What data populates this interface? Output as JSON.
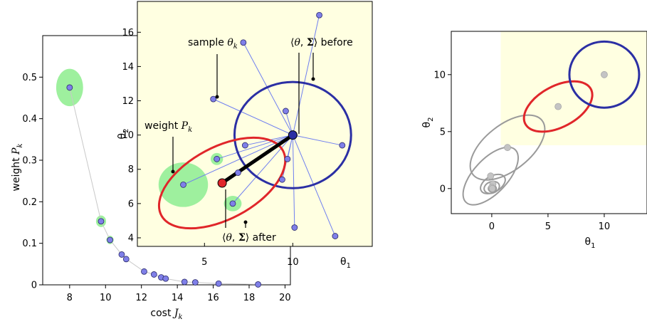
{
  "chart_data": [
    {
      "type": "scatter",
      "panel": "weights",
      "xlabel": "cost J_k",
      "xlabel_main": "cost ",
      "xlabel_sym": "J",
      "xlabel_sub": "k",
      "ylabel": "weight P_k",
      "ylabel_main": "weight ",
      "ylabel_sym": "P",
      "ylabel_sub": "k",
      "xlim": [
        6.5,
        20.3
      ],
      "ylim": [
        0,
        0.6
      ],
      "xticks": [
        8,
        10,
        12,
        14,
        16,
        18,
        20
      ],
      "yticks": [
        0,
        0.1,
        0.2,
        0.3,
        0.4,
        0.5
      ],
      "points": [
        {
          "x": 8.0,
          "y": 0.475
        },
        {
          "x": 9.75,
          "y": 0.153
        },
        {
          "x": 10.25,
          "y": 0.108
        },
        {
          "x": 10.9,
          "y": 0.073
        },
        {
          "x": 11.15,
          "y": 0.062
        },
        {
          "x": 12.15,
          "y": 0.032
        },
        {
          "x": 12.7,
          "y": 0.025
        },
        {
          "x": 13.1,
          "y": 0.018
        },
        {
          "x": 13.35,
          "y": 0.015
        },
        {
          "x": 14.4,
          "y": 0.007
        },
        {
          "x": 15.0,
          "y": 0.006
        },
        {
          "x": 16.3,
          "y": 0.003
        },
        {
          "x": 18.5,
          "y": 0.001
        }
      ],
      "highlighted": [
        {
          "x": 8.0,
          "y": 0.475,
          "rx": 0.75,
          "ry": 0.045
        },
        {
          "x": 9.75,
          "y": 0.153,
          "rx": 0.28,
          "ry": 0.014
        },
        {
          "x": 10.25,
          "y": 0.108,
          "rx": 0.2,
          "ry": 0.01
        }
      ]
    },
    {
      "type": "scatter",
      "panel": "update",
      "xlabel": "θ1",
      "xlabel_main": "θ",
      "xlabel_sub": "1",
      "ylabel": "θ2",
      "ylabel_main": "θ",
      "ylabel_sub": "2",
      "xlim": [
        1.2,
        14.5
      ],
      "ylim": [
        3.5,
        17.8
      ],
      "xticks": [
        5,
        10
      ],
      "yticks": [
        4,
        6,
        8,
        10,
        12,
        14,
        16
      ],
      "mean_before": {
        "x": 10.0,
        "y": 10.0
      },
      "mean_after": {
        "x": 6.0,
        "y": 7.2
      },
      "cov_before": {
        "rx": 3.3,
        "ry": 3.1,
        "angle": 0
      },
      "cov_after": {
        "rx": 3.9,
        "ry": 2.1,
        "angle": 28
      },
      "samples": [
        {
          "x": 11.5,
          "y": 17.0
        },
        {
          "x": 7.2,
          "y": 15.4
        },
        {
          "x": 5.5,
          "y": 12.1
        },
        {
          "x": 9.6,
          "y": 11.4
        },
        {
          "x": 12.8,
          "y": 9.4
        },
        {
          "x": 7.3,
          "y": 9.4
        },
        {
          "x": 9.7,
          "y": 8.6
        },
        {
          "x": 5.7,
          "y": 8.6
        },
        {
          "x": 6.9,
          "y": 7.8
        },
        {
          "x": 9.4,
          "y": 7.4
        },
        {
          "x": 3.8,
          "y": 7.1
        },
        {
          "x": 6.6,
          "y": 6.0
        },
        {
          "x": 10.1,
          "y": 4.6
        },
        {
          "x": 12.4,
          "y": 4.1
        }
      ],
      "weight_halos": [
        {
          "x": 3.8,
          "y": 7.1,
          "rx": 1.4,
          "ry": 1.3
        },
        {
          "x": 5.7,
          "y": 8.6,
          "rx": 0.35,
          "ry": 0.35
        },
        {
          "x": 6.6,
          "y": 6.0,
          "rx": 0.5,
          "ry": 0.45
        }
      ],
      "annotations": [
        {
          "text_main": "sample ",
          "sym": "θ",
          "sub": "k"
        },
        {
          "text_main": "weight ",
          "sym": "P",
          "sub": "k"
        },
        {
          "text_main": " before"
        },
        {
          "text_main": " after"
        }
      ],
      "bracket_label": {
        "open": "⟨",
        "theta": "θ",
        "comma": ", ",
        "sigma": "Σ",
        "close": "⟩"
      }
    },
    {
      "type": "scatter",
      "panel": "history",
      "xlabel": "θ1",
      "xlabel_main": "θ",
      "xlabel_sub": "1",
      "ylabel": "θ2",
      "ylabel_main": "θ",
      "ylabel_sub": "2",
      "xlim": [
        -3.6,
        13.8
      ],
      "ylim": [
        -2.2,
        13.8
      ],
      "xticks": [
        0,
        5,
        10
      ],
      "yticks": [
        0,
        5,
        10
      ],
      "region": {
        "x0": 0.8,
        "y0": 3.8
      },
      "colors": {
        "before": "#2b2fa4",
        "after": "#e0262a",
        "history": "#9a9a9a",
        "sample": "#7f7fe8",
        "halo": "#9ef09e",
        "region": "#ffffe1"
      },
      "means": [
        {
          "x": 10.0,
          "y": 10.0,
          "rx": 3.1,
          "ry": 2.9,
          "angle": 0,
          "role": "before"
        },
        {
          "x": 5.9,
          "y": 7.2,
          "rx": 3.3,
          "ry": 1.8,
          "angle": 28,
          "role": "after"
        },
        {
          "x": 1.4,
          "y": 3.6,
          "rx": 3.9,
          "ry": 2.0,
          "angle": 38,
          "role": "history"
        },
        {
          "x": -0.1,
          "y": 1.1,
          "rx": 3.2,
          "ry": 1.5,
          "angle": 47,
          "role": "history"
        },
        {
          "x": 0.1,
          "y": 0.4,
          "rx": 1.2,
          "ry": 0.7,
          "angle": 30,
          "role": "history"
        },
        {
          "x": 0.0,
          "y": 0.1,
          "rx": 0.7,
          "ry": 0.5,
          "angle": 20,
          "role": "history"
        },
        {
          "x": 0.05,
          "y": 0.0,
          "rx": 0.35,
          "ry": 0.3,
          "angle": 0,
          "role": "history"
        }
      ]
    }
  ]
}
